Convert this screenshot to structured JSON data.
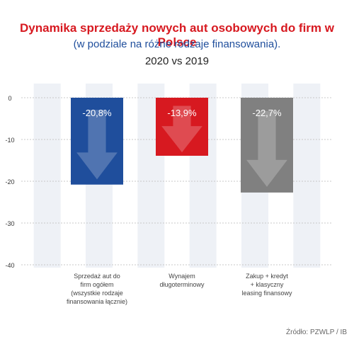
{
  "title": "Dynamika sprzedaży nowych aut osobowych do firm w Polsce",
  "subtitle": "(w podziale na różne rodzaje finansowania).",
  "period": "2020 vs 2019",
  "source": "Źródło: PZWLP / IB",
  "colors": {
    "title": "#d71920",
    "subtitle": "#1f4e9c",
    "bars": [
      "#1f4e9c",
      "#d71920",
      "#808080"
    ],
    "band": "#eef1f6"
  },
  "chart_data": {
    "type": "bar",
    "categories": [
      [
        "Sprzedaż aut do",
        "firm ogółem",
        "(wszystkie rodzaje",
        "finansowania łącznie)"
      ],
      [
        "Wynajem",
        "długoterminowy"
      ],
      [
        "Zakup + kredyt",
        "+ klasyczny",
        "leasing finansowy"
      ]
    ],
    "values": [
      -20.8,
      -13.9,
      -22.7
    ],
    "data_labels": [
      "-20,8%",
      "-13,9%",
      "-22,7%"
    ],
    "ylim": [
      -40,
      0
    ],
    "yticks": [
      0,
      -10,
      -20,
      -30,
      -40
    ],
    "grid": true,
    "xlabel": "",
    "ylabel": ""
  }
}
